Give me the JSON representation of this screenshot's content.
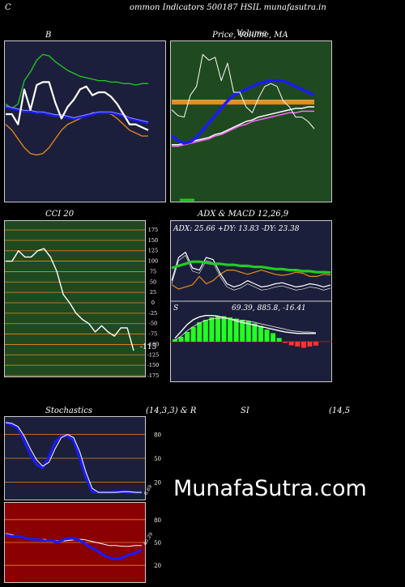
{
  "header": {
    "prefix": "C",
    "title": "ommon  Indicators 500187 H",
    "title2": "SIL  munafasutra.in"
  },
  "brand": "MunafaSutra.com",
  "colors": {
    "navy": "#1c1f3b",
    "green": "#1f4a1f",
    "red": "#8b0000",
    "white_line": "#ffffff",
    "blue_line": "#1a1aff",
    "green_line": "#22cc22",
    "orange_line": "#e8891c"
  },
  "panels": {
    "bb": {
      "label": "B"
    },
    "price": {
      "label": "Price,  Volume,  MA",
      "label2": "Volume"
    },
    "cci": {
      "label": "CCI 20",
      "value_label": "-115",
      "ticks": [
        "175",
        "150",
        "125",
        "100",
        "75",
        "50",
        "25",
        "0",
        "-25",
        "-50",
        "-75",
        "-100",
        "-125",
        "-150",
        "-175"
      ]
    },
    "adx": {
      "label": "ADX  & MACD 12,26,9",
      "adx_text": "ADX: 25.66   +DY: 13.83 -DY: 23.38",
      "macd_label_s": "S",
      "macd_text": "69.39,  885.8,  -16.41"
    },
    "stoch": {
      "label": "Stochastics",
      "label_params": "(14,3,3) & R",
      "ticks": [
        "80",
        "50",
        "20"
      ],
      "value_label": "6.69"
    },
    "rsi": {
      "label": "SI",
      "label_params": "(14,5",
      "ticks": [
        "80",
        "50",
        "20"
      ],
      "value_label": "40.29"
    }
  },
  "chart_data": [
    {
      "type": "line",
      "title": "B",
      "series": [
        {
          "values": [
            55,
            55,
            48,
            72,
            58,
            75,
            77,
            77,
            63,
            52,
            60,
            65,
            72,
            74,
            68,
            70,
            70,
            67,
            62,
            55,
            48,
            48,
            46,
            44
          ]
        },
        {
          "values": [
            60,
            59,
            58,
            57,
            57,
            56,
            56,
            55,
            54,
            54,
            53,
            52,
            53,
            54,
            55,
            56,
            56,
            56,
            55,
            54,
            52,
            51,
            50,
            49
          ]
        },
        {
          "values": [
            62,
            59,
            62,
            78,
            84,
            92,
            96,
            95,
            91,
            88,
            85,
            83,
            81,
            80,
            79,
            78,
            78,
            77,
            77,
            76,
            76,
            75,
            76,
            76
          ]
        },
        {
          "values": [
            48,
            44,
            38,
            32,
            28,
            27,
            28,
            32,
            38,
            44,
            48,
            50,
            52,
            54,
            56,
            56,
            56,
            55,
            52,
            48,
            44,
            42,
            40,
            40
          ]
        }
      ]
    },
    {
      "type": "line",
      "title": "Price,  Volume,  MA",
      "series": [
        {
          "values": [
            58,
            54,
            53,
            68,
            74,
            96,
            92,
            94,
            78,
            90,
            70,
            70,
            60,
            56,
            66,
            74,
            76,
            74,
            64,
            60,
            53,
            53,
            50,
            45
          ]
        },
        {
          "values": [
            40,
            37,
            35,
            36,
            39,
            44,
            49,
            54,
            59,
            64,
            68,
            70,
            72,
            74,
            76,
            77,
            78,
            78,
            78,
            76,
            74,
            72,
            70,
            68
          ]
        },
        {
          "values": [
            63,
            63,
            63,
            63,
            63,
            63,
            63,
            63,
            63,
            63,
            63,
            63,
            63,
            63,
            63,
            63,
            63,
            63,
            63,
            63,
            63,
            63,
            63,
            63
          ]
        },
        {
          "values": [
            34,
            34,
            35,
            36,
            37,
            38,
            39,
            41,
            42,
            44,
            46,
            48,
            50,
            51,
            53,
            54,
            55,
            56,
            57,
            58,
            59,
            59,
            60,
            60
          ]
        },
        {
          "values": [
            33,
            33,
            34,
            35,
            36,
            37,
            38,
            40,
            41,
            43,
            45,
            47,
            48,
            50,
            51,
            52,
            53,
            54,
            55,
            56,
            56,
            57,
            57,
            57
          ]
        }
      ]
    },
    {
      "type": "line",
      "title": "CCI 20",
      "ylim": [
        -175,
        175
      ],
      "series": [
        {
          "values": [
            100,
            100,
            125,
            110,
            110,
            125,
            130,
            110,
            75,
            20,
            0,
            -25,
            -40,
            -50,
            -70,
            -55,
            -70,
            -80,
            -60,
            -60,
            -115
          ]
        }
      ]
    },
    {
      "type": "line",
      "title": "ADX  & MACD 12,26,9",
      "series": [
        {
          "values": [
            30,
            32,
            34,
            36,
            36,
            35,
            34,
            34,
            33,
            33,
            32,
            32,
            31,
            31,
            30,
            29,
            29,
            28,
            28,
            27,
            27,
            26,
            26,
            25.66
          ]
        },
        {
          "values": [
            18,
            40,
            45,
            30,
            28,
            40,
            38,
            25,
            15,
            12,
            14,
            18,
            15,
            12,
            13,
            15,
            16,
            14,
            12,
            13,
            15,
            14,
            12,
            13.83
          ]
        },
        {
          "values": [
            14,
            10,
            12,
            14,
            22,
            15,
            18,
            24,
            28,
            28,
            26,
            24,
            26,
            28,
            26,
            24,
            23,
            24,
            26,
            25,
            22,
            22,
            24,
            23.38
          ]
        }
      ]
    },
    {
      "type": "bar",
      "title": "MACD 12,26,9",
      "values": [
        10,
        20,
        40,
        60,
        80,
        90,
        100,
        105,
        105,
        100,
        95,
        90,
        85,
        75,
        65,
        50,
        35,
        15,
        -5,
        -15,
        -20,
        -25,
        -20,
        -16.41
      ]
    },
    {
      "type": "line",
      "title": "Stochastics",
      "ylim": [
        0,
        100
      ],
      "series": [
        {
          "values": [
            95,
            92,
            88,
            72,
            55,
            42,
            38,
            52,
            70,
            78,
            78,
            72,
            50,
            25,
            8,
            7,
            7,
            7,
            8,
            8,
            7,
            7,
            6.69
          ]
        },
        {
          "values": [
            95,
            94,
            90,
            78,
            62,
            48,
            40,
            45,
            62,
            76,
            80,
            76,
            58,
            32,
            12,
            7,
            7,
            7,
            7,
            8,
            8,
            7,
            7
          ]
        }
      ]
    },
    {
      "type": "line",
      "title": "SI",
      "ylim": [
        0,
        100
      ],
      "series": [
        {
          "values": [
            60,
            58,
            58,
            56,
            54,
            54,
            52,
            53,
            50,
            54,
            56,
            54,
            50,
            44,
            40,
            34,
            30,
            28,
            30,
            34,
            36,
            40.29
          ]
        },
        {
          "values": [
            62,
            60,
            58,
            56,
            55,
            54,
            54,
            53,
            52,
            52,
            53,
            54,
            54,
            52,
            50,
            48,
            46,
            46,
            45,
            45,
            46,
            46
          ]
        }
      ]
    }
  ]
}
